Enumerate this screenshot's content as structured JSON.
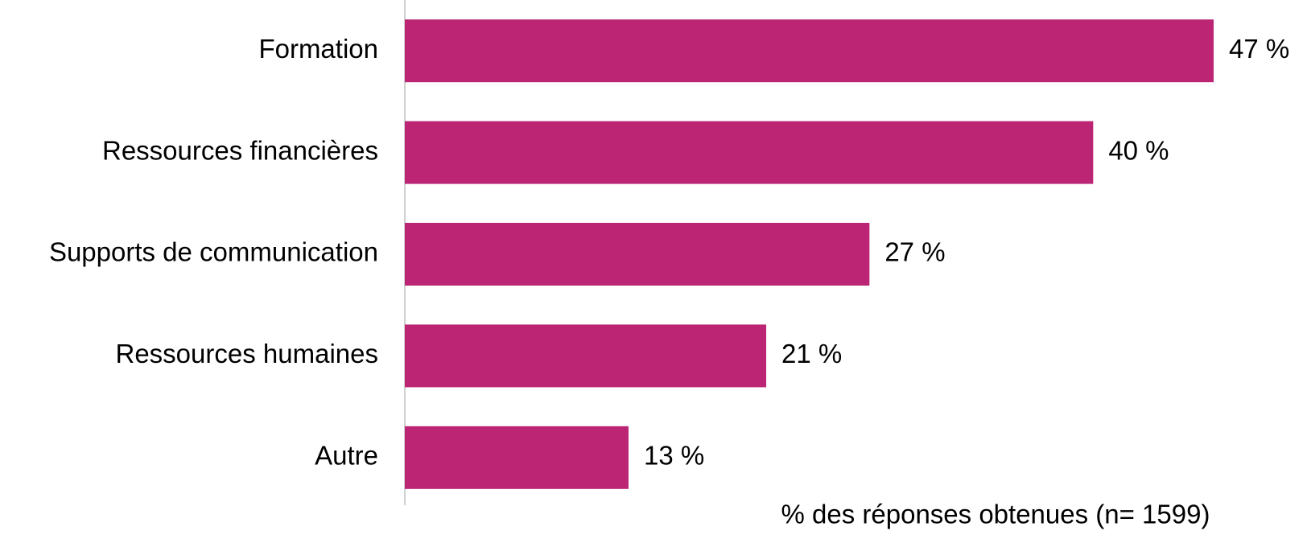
{
  "chart_data": {
    "type": "hbar",
    "categories": [
      "Formation",
      "Ressources financières",
      "Supports de communication",
      "Ressources humaines",
      "Autre"
    ],
    "values": [
      47,
      40,
      27,
      21,
      13
    ],
    "value_labels": [
      "47 %",
      "40 %",
      "27 %",
      "21 %",
      "13 %"
    ],
    "color": "#bb2573",
    "xlabel": "% des réponses obtenues (n= 1599)"
  }
}
